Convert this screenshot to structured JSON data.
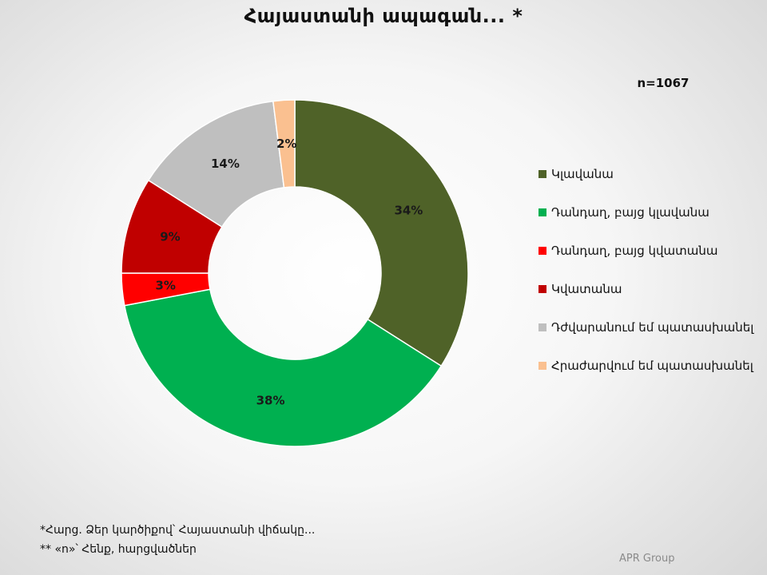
{
  "title": "Հայաստանի ապագան... *",
  "sample_size": "n=1067",
  "footnotes": {
    "question": "*Հարց. Ձեր կարծիքով՝ Հայաստանի վիճակը...",
    "sample_note": "** «n»՝ Հենք, հարցվածներ"
  },
  "source": "APR Group",
  "chart_data": {
    "type": "pie",
    "style": "donut",
    "start_angle": "12 o'clock, clockwise",
    "legend_position": "right",
    "categories": [
      "Կլավանա",
      "Դանդաղ, բայց կլավանա",
      "Դանդաղ, բայց կվատանա",
      "Կվատանա",
      "Դժվարանում եմ պատասխանել",
      "Հրաժարվում եմ պատասխանել"
    ],
    "values": [
      34,
      38,
      3,
      9,
      14,
      2
    ],
    "labels": [
      "34%",
      "38%",
      "3%",
      "9%",
      "14%",
      "2%"
    ],
    "colors": [
      "#4f6228",
      "#00b050",
      "#ff0000",
      "#c00000",
      "#bfbfbf",
      "#fac090"
    ]
  }
}
